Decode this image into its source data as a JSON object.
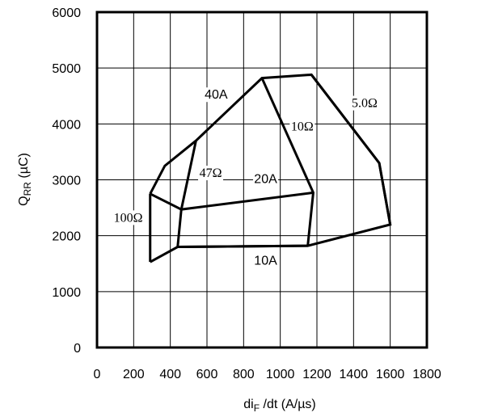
{
  "chart_data": {
    "type": "line",
    "xlabel": {
      "main": "di",
      "sub": "F",
      "rest": " /dt (A/µs)"
    },
    "ylabel": {
      "main": "Q",
      "sub": "RR",
      "rest": " (µC)"
    },
    "xlim": [
      0,
      1800
    ],
    "ylim": [
      0,
      6000
    ],
    "x_ticks": [
      0,
      200,
      400,
      600,
      800,
      1000,
      1200,
      1400,
      1600,
      1800
    ],
    "x_tick_labels": [
      "0",
      "200",
      "400",
      "600",
      "800",
      "1000",
      "1200",
      "1400",
      "1600",
      "1800"
    ],
    "y_ticks": [
      0,
      1000,
      2000,
      3000,
      4000,
      5000,
      6000
    ],
    "y_tick_labels": [
      "0",
      "1000",
      "2000",
      "3000",
      "4000",
      "5000",
      "6000"
    ],
    "grid": true,
    "series": [
      {
        "name": "40A",
        "points": [
          [
            290,
            2750
          ],
          [
            370,
            3250
          ],
          [
            540,
            3700
          ],
          [
            900,
            4820
          ],
          [
            1170,
            4880
          ],
          [
            1540,
            3300
          ],
          [
            1600,
            2200
          ],
          [
            1150,
            1820
          ],
          [
            440,
            1800
          ],
          [
            290,
            1530
          ]
        ]
      },
      {
        "name": "20A",
        "points": [
          [
            290,
            2750
          ],
          [
            460,
            2470
          ],
          [
            1180,
            2770
          ]
        ]
      },
      {
        "name": "10A",
        "points": [
          [
            440,
            1800
          ],
          [
            1150,
            1820
          ]
        ]
      },
      {
        "name": "100Ω",
        "points": [
          [
            290,
            2750
          ],
          [
            290,
            1530
          ]
        ]
      },
      {
        "name": "47Ω",
        "points": [
          [
            540,
            3700
          ],
          [
            460,
            2470
          ],
          [
            440,
            1800
          ]
        ]
      },
      {
        "name": "10Ω",
        "points": [
          [
            900,
            4820
          ],
          [
            1180,
            2770
          ],
          [
            1150,
            1820
          ]
        ]
      },
      {
        "name": "5.0Ω",
        "points": [
          [
            1170,
            4880
          ],
          [
            1540,
            3300
          ],
          [
            1600,
            2200
          ]
        ]
      }
    ],
    "annotations": [
      {
        "text": "40A",
        "x": 650,
        "y": 4450,
        "font": "sans"
      },
      {
        "text": "20A",
        "x": 920,
        "y": 2940,
        "font": "sans"
      },
      {
        "text": "10A",
        "x": 920,
        "y": 1480,
        "font": "sans"
      },
      {
        "text": "100Ω",
        "x": 170,
        "y": 2250,
        "font": "serif"
      },
      {
        "text": "47Ω",
        "x": 620,
        "y": 3050,
        "font": "serif"
      },
      {
        "text": "10Ω",
        "x": 1120,
        "y": 3880,
        "font": "serif"
      },
      {
        "text": "5.0Ω",
        "x": 1460,
        "y": 4300,
        "font": "serif"
      }
    ]
  }
}
